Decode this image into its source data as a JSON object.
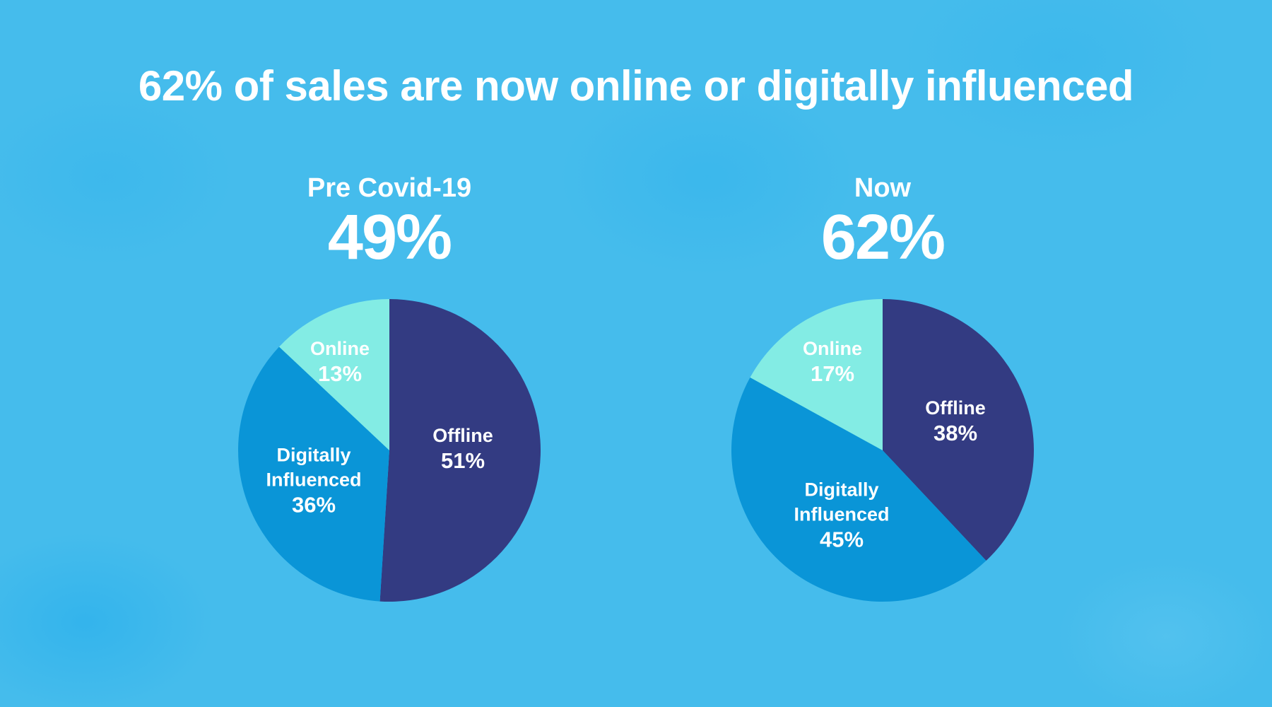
{
  "title": "62% of sales are now online or digitally influenced",
  "colors": {
    "background": "#45BCEC",
    "offline": "#333B82",
    "digitally_influenced": "#0A95D7",
    "online": "#83ECE4",
    "text": "#FFFFFF"
  },
  "panels": [
    {
      "period": "Pre Covid-19",
      "headline": "49%",
      "slices": {
        "online": {
          "label": "Online",
          "pct": "13%"
        },
        "digital": {
          "label1": "Digitally",
          "label2": "Influenced",
          "pct": "36%"
        },
        "offline": {
          "label": "Offline",
          "pct": "51%"
        }
      }
    },
    {
      "period": "Now",
      "headline": "62%",
      "slices": {
        "online": {
          "label": "Online",
          "pct": "17%"
        },
        "digital": {
          "label1": "Digitally",
          "label2": "Influenced",
          "pct": "45%"
        },
        "offline": {
          "label": "Offline",
          "pct": "38%"
        }
      }
    }
  ],
  "chart_data": [
    {
      "type": "pie",
      "title": "Pre Covid-19",
      "subtitle": "49%",
      "categories": [
        "Offline",
        "Digitally Influenced",
        "Online"
      ],
      "values": [
        51,
        36,
        13
      ],
      "colors": [
        "#333B82",
        "#0A95D7",
        "#83ECE4"
      ],
      "start_angle_deg": 0,
      "direction": "clockwise from 12 o'clock",
      "legend": "none (direct labels)"
    },
    {
      "type": "pie",
      "title": "Now",
      "subtitle": "62%",
      "categories": [
        "Offline",
        "Digitally Influenced",
        "Online"
      ],
      "values": [
        38,
        45,
        17
      ],
      "colors": [
        "#333B82",
        "#0A95D7",
        "#83ECE4"
      ],
      "start_angle_deg": 0,
      "direction": "clockwise from 12 o'clock",
      "legend": "none (direct labels)"
    }
  ]
}
